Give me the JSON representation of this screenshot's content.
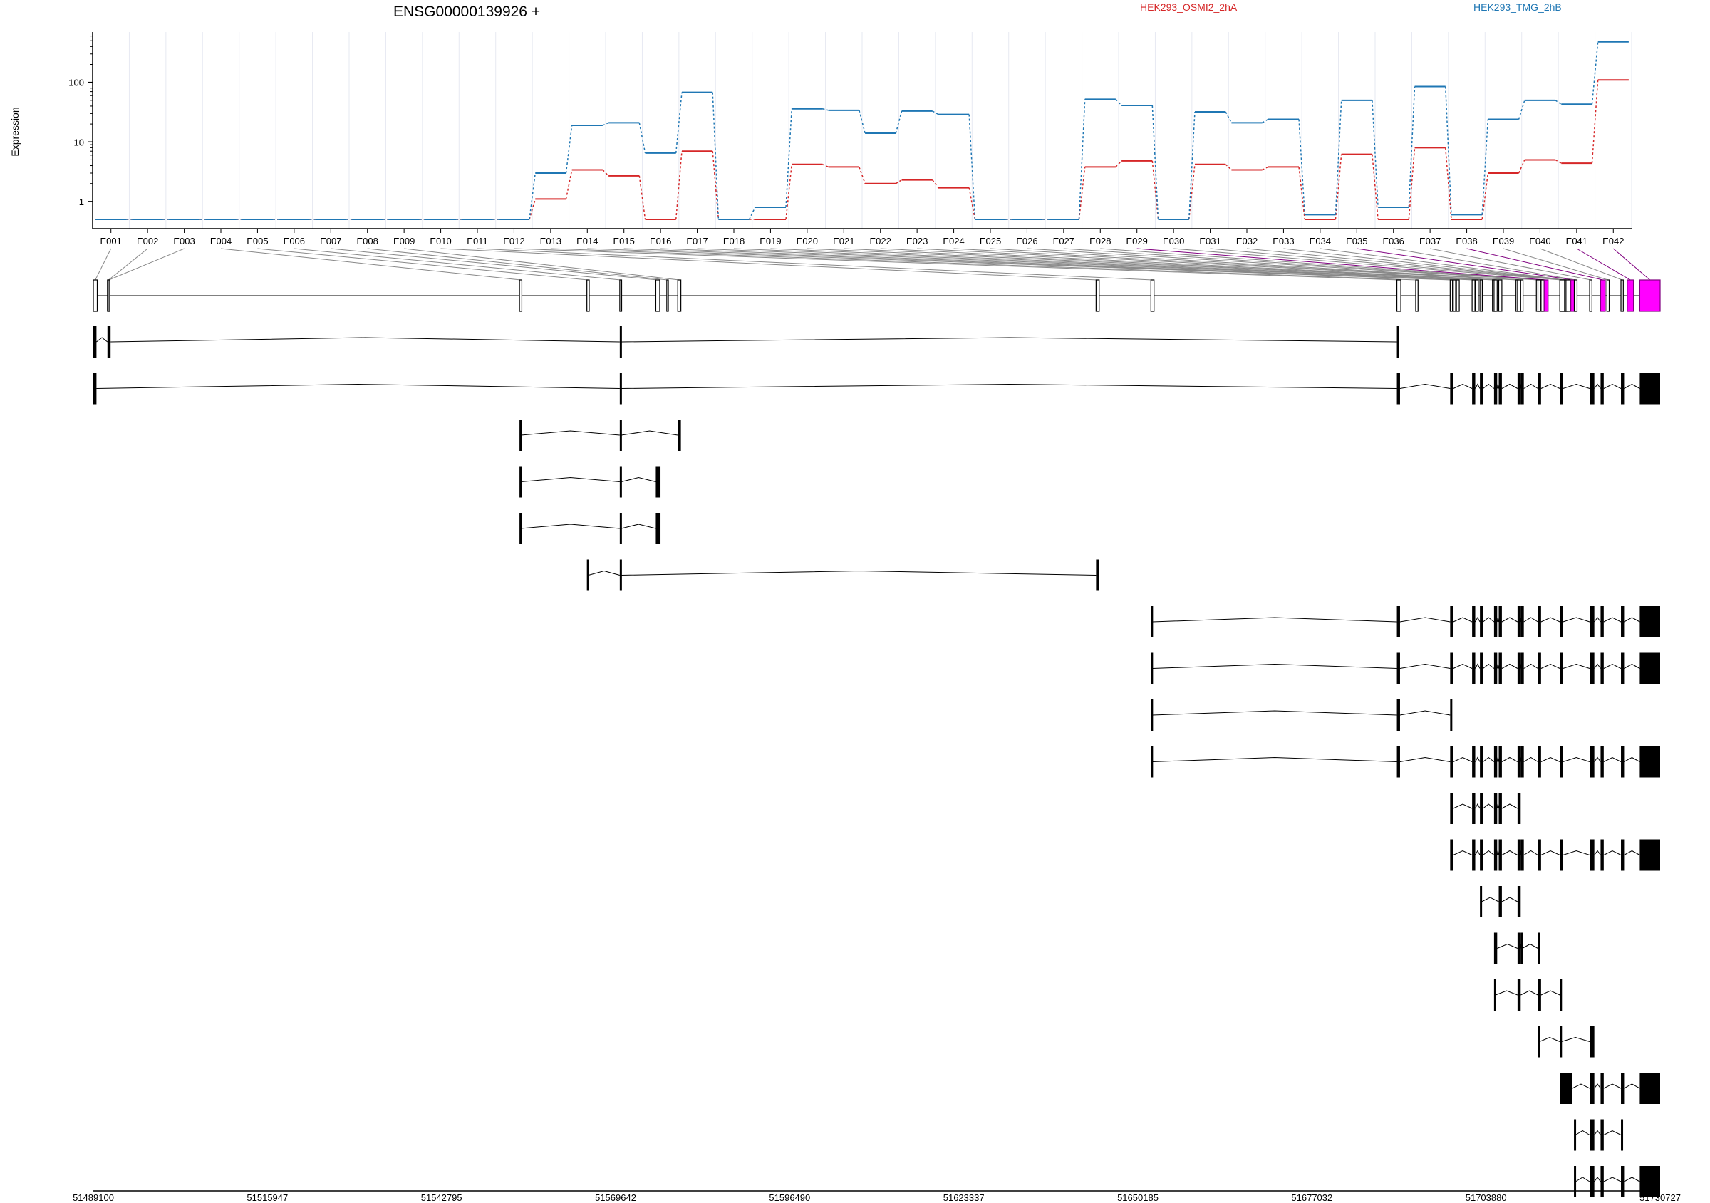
{
  "chart_data": {
    "type": "line",
    "title": "ENSG00000139926 +",
    "ylabel": "Expression",
    "y_scale": "log",
    "y_ticks": [
      "1",
      "10",
      "100"
    ],
    "ylim": [
      0.35,
      700
    ],
    "grid": "vertical light gridlines at exon bins",
    "legend_placement": "top",
    "colors": {
      "HEK293_OSMI2_2hA": "#d62728",
      "HEK293_TMG_2hB": "#1f77b4",
      "highlight_exon": "#ff00ff",
      "highlight_link": "#800080"
    },
    "categories": [
      "E001",
      "E002",
      "E003",
      "E004",
      "E005",
      "E006",
      "E007",
      "E008",
      "E009",
      "E010",
      "E011",
      "E012",
      "E013",
      "E014",
      "E015",
      "E016",
      "E017",
      "E018",
      "E019",
      "E020",
      "E021",
      "E022",
      "E023",
      "E024",
      "E025",
      "E026",
      "E027",
      "E028",
      "E029",
      "E030",
      "E031",
      "E032",
      "E033",
      "E034",
      "E035",
      "E036",
      "E037",
      "E038",
      "E039",
      "E040",
      "E041",
      "E042"
    ],
    "series": [
      {
        "name": "HEK293_OSMI2_2hA",
        "color": "#d62728",
        "values": [
          0.5,
          0.5,
          0.5,
          0.5,
          0.5,
          0.5,
          0.5,
          0.5,
          0.5,
          0.5,
          0.5,
          0.5,
          1.1,
          3.4,
          2.7,
          0.5,
          7.0,
          0.5,
          0.5,
          4.2,
          3.8,
          2.0,
          2.3,
          1.7,
          0.5,
          0.5,
          0.5,
          3.8,
          4.8,
          0.5,
          4.2,
          3.4,
          3.8,
          0.5,
          6.2,
          0.5,
          8.0,
          0.5,
          3.0,
          5.0,
          4.4,
          110
        ]
      },
      {
        "name": "HEK293_TMG_2hB",
        "color": "#1f77b4",
        "values": [
          0.5,
          0.5,
          0.5,
          0.5,
          0.5,
          0.5,
          0.5,
          0.5,
          0.5,
          0.5,
          0.5,
          0.5,
          3.0,
          19,
          21,
          6.5,
          68,
          0.5,
          0.8,
          36,
          34,
          14,
          33,
          29,
          0.5,
          0.5,
          0.5,
          52,
          41,
          0.5,
          32,
          21,
          24,
          0.6,
          50,
          0.8,
          85,
          0.6,
          24,
          50,
          43,
          480
        ]
      }
    ],
    "genomic_axis": {
      "ticks": [
        "51489100",
        "51515947",
        "51542795",
        "51569642",
        "51596490",
        "51623337",
        "51650185",
        "51677032",
        "51703880",
        "51730727"
      ]
    },
    "gene_model": {
      "description": "merged exon bins with links to plotted categories; highlighted (magenta) bins are significant",
      "highlighted_exons": [
        "E029",
        "E035",
        "E038",
        "E041",
        "E042"
      ]
    },
    "transcripts_count": 19
  }
}
